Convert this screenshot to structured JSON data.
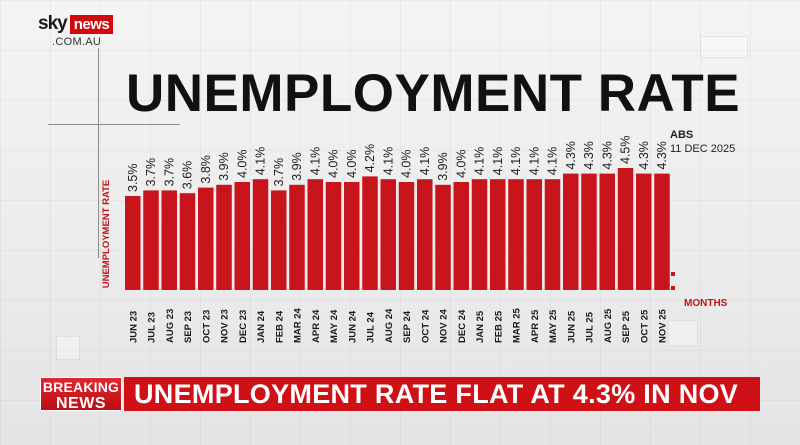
{
  "logo": {
    "brand": "sky",
    "brand_accent": "news",
    "domain": ".COM.AU"
  },
  "title": "UNEMPLOYMENT RATE",
  "source": {
    "label": "ABS",
    "date": "11 DEC 2025"
  },
  "breaking": {
    "top": "BREAKING",
    "bottom": "NEWS"
  },
  "headline": "UNEMPLOYMENT RATE FLAT AT 4.3% IN NOV",
  "colors": {
    "bar": "#c8141b",
    "accent": "#d10a10",
    "text": "#111111"
  },
  "chart_data": {
    "type": "bar",
    "title": "UNEMPLOYMENT RATE",
    "ylabel": "UNEMPLOYMENT RATE",
    "xlabel": "MONTHS",
    "ylim": [
      0,
      4.5
    ],
    "grid": false,
    "categories": [
      "JUN 23",
      "JUL 23",
      "AUG 23",
      "SEP 23",
      "OCT 23",
      "NOV 23",
      "DEC 23",
      "JAN 24",
      "FEB 24",
      "MAR 24",
      "APR 24",
      "MAY 24",
      "JUN 24",
      "JUL 24",
      "AUG 24",
      "SEP 24",
      "OCT 24",
      "NOV 24",
      "DEC 24",
      "JAN 25",
      "FEB 25",
      "MAR 25",
      "APR 25",
      "MAY 25",
      "JUN 25",
      "JUL 25",
      "AUG 25",
      "SEP 25",
      "OCT 25",
      "NOV 25"
    ],
    "values": [
      3.5,
      3.7,
      3.7,
      3.6,
      3.8,
      3.9,
      4.0,
      4.1,
      3.7,
      3.9,
      4.1,
      4.0,
      4.0,
      4.2,
      4.1,
      4.0,
      4.1,
      3.9,
      4.0,
      4.1,
      4.1,
      4.1,
      4.1,
      4.1,
      4.3,
      4.3,
      4.3,
      4.5,
      4.3,
      4.3
    ],
    "data_labels": [
      "3.5%",
      "3.7%",
      "3.7%",
      "3.6%",
      "3.8%",
      "3.9%",
      "4.0%",
      "4.1%",
      "3.7%",
      "3.9%",
      "4.1%",
      "4.0%",
      "4.0%",
      "4.2%",
      "4.1%",
      "4.0%",
      "4.1%",
      "3.9%",
      "4.0%",
      "4.1%",
      "4.1%",
      "4.1%",
      "4.1%",
      "4.1%",
      "4.3%",
      "4.3%",
      "4.3%",
      "4.5%",
      "4.3%",
      "4.3%"
    ]
  }
}
